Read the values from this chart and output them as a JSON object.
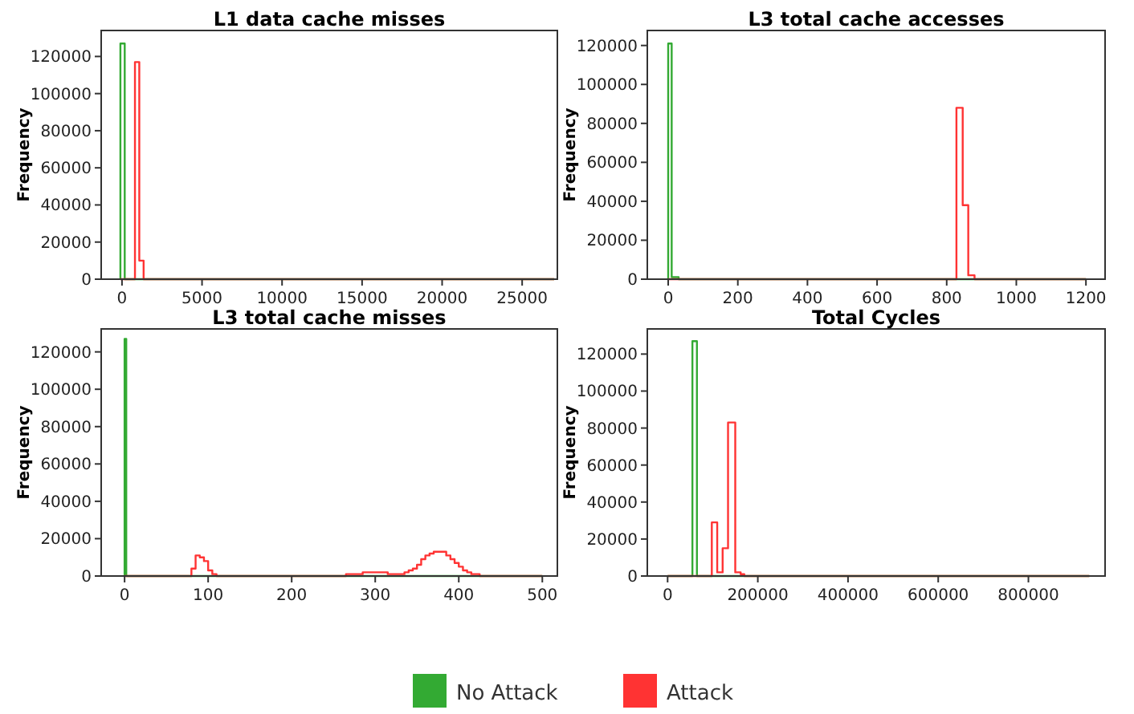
{
  "chart_data": [
    {
      "type": "histogram",
      "title": "L1 data cache misses",
      "ylabel": "Frequency",
      "xlim": [
        -1300,
        27200
      ],
      "xticks": [
        0,
        5000,
        10000,
        15000,
        20000,
        25000
      ],
      "ylim": [
        0,
        134000
      ],
      "yticks": [
        0,
        20000,
        40000,
        60000,
        80000,
        100000,
        120000
      ],
      "legend": "bottom",
      "bins": [
        -100,
        170,
        440,
        810,
        1080,
        1350,
        1620,
        27000
      ],
      "series": [
        {
          "name": "No Attack",
          "color": "#33aa33",
          "values": [
            127000,
            0,
            0,
            0,
            0,
            0,
            0
          ]
        },
        {
          "name": "Attack",
          "color": "#ff3333",
          "values": [
            0,
            0,
            0,
            117000,
            10000,
            0,
            0
          ]
        }
      ]
    },
    {
      "type": "histogram",
      "title": "L3 total cache accesses",
      "ylabel": "Frequency",
      "xlim": [
        -60,
        1255
      ],
      "xticks": [
        0,
        200,
        400,
        600,
        800,
        1000,
        1200
      ],
      "ylim": [
        0,
        127700
      ],
      "yticks": [
        0,
        20000,
        40000,
        60000,
        80000,
        100000,
        120000
      ],
      "bins": [
        0,
        10,
        30,
        280,
        828,
        846,
        862,
        880,
        897,
        1200
      ],
      "series": [
        {
          "color": "#33aa33",
          "values": [
            121000,
            1000,
            0,
            0,
            0,
            0,
            0,
            0,
            0
          ]
        },
        {
          "color": "#ff3333",
          "values": [
            0,
            0,
            0,
            0,
            88000,
            38000,
            2000,
            0,
            0
          ]
        }
      ]
    },
    {
      "type": "histogram",
      "title": "L3 total cache misses",
      "ylabel": "Frequency",
      "xlim": [
        -28,
        518
      ],
      "xticks": [
        0,
        100,
        200,
        300,
        400,
        500
      ],
      "ylim": [
        0,
        132300
      ],
      "yticks": [
        0,
        20000,
        40000,
        60000,
        80000,
        100000,
        120000
      ],
      "bins": [
        0,
        2,
        30,
        80,
        85,
        90,
        95,
        100,
        105,
        110,
        115,
        120,
        125,
        130,
        135,
        140,
        145,
        150,
        155,
        160,
        165,
        170,
        175,
        180,
        185,
        190,
        195,
        200,
        205,
        210,
        215,
        220,
        225,
        230,
        235,
        240,
        245,
        250,
        255,
        260,
        265,
        270,
        275,
        280,
        285,
        290,
        295,
        300,
        305,
        310,
        315,
        320,
        325,
        330,
        335,
        340,
        345,
        350,
        355,
        360,
        365,
        370,
        375,
        380,
        385,
        390,
        395,
        400,
        405,
        410,
        415,
        420,
        425,
        430,
        500
      ],
      "series": [
        {
          "color": "#33aa33",
          "values": [
            127000,
            0,
            0,
            0,
            0,
            0,
            0,
            0,
            0,
            0,
            0,
            0,
            0,
            0,
            0,
            0,
            0,
            0,
            0,
            0,
            0,
            0,
            0,
            0,
            0,
            0,
            0,
            0,
            0,
            0,
            0,
            0,
            0,
            0,
            0,
            0,
            0,
            0,
            0,
            0,
            0,
            0,
            0,
            0,
            0,
            0,
            0,
            0,
            0,
            0,
            0,
            0,
            0,
            0,
            0,
            0,
            0,
            0,
            0,
            0,
            0,
            0,
            0,
            0,
            0,
            0,
            0,
            0,
            0,
            0,
            0,
            0,
            0,
            0
          ]
        },
        {
          "color": "#ff3333",
          "values": [
            0,
            0,
            0,
            4000,
            11000,
            10000,
            8000,
            3000,
            1000,
            0,
            0,
            0,
            0,
            0,
            0,
            0,
            0,
            0,
            0,
            0,
            0,
            0,
            0,
            0,
            0,
            0,
            0,
            0,
            0,
            0,
            0,
            0,
            0,
            0,
            0,
            0,
            0,
            0,
            0,
            0,
            1000,
            1000,
            1000,
            1000,
            2000,
            2000,
            2000,
            2000,
            2000,
            2000,
            1000,
            1000,
            1000,
            1000,
            2000,
            3000,
            4000,
            6000,
            9000,
            11000,
            12000,
            13000,
            13000,
            13000,
            11000,
            9000,
            7000,
            5000,
            3000,
            2000,
            1000,
            1000,
            0,
            0
          ]
        }
      ]
    },
    {
      "type": "histogram",
      "title": "Total Cycles",
      "ylabel": "Frequency",
      "xlim": [
        -45000,
        970000
      ],
      "xticks": [
        0,
        200000,
        400000,
        600000,
        800000
      ],
      "ylim": [
        0,
        133600
      ],
      "yticks": [
        0,
        20000,
        40000,
        60000,
        80000,
        100000,
        120000
      ],
      "bins": [
        0,
        55000,
        65000,
        98000,
        110000,
        122000,
        134000,
        150000,
        162000,
        170000,
        530000,
        935000
      ],
      "series": [
        {
          "color": "#33aa33",
          "values": [
            0,
            127000,
            0,
            0,
            0,
            0,
            0,
            0,
            0,
            0,
            0
          ]
        },
        {
          "color": "#ff3333",
          "values": [
            0,
            0,
            0,
            29000,
            2000,
            15000,
            83000,
            2000,
            1000,
            0,
            0
          ]
        }
      ]
    }
  ]
}
